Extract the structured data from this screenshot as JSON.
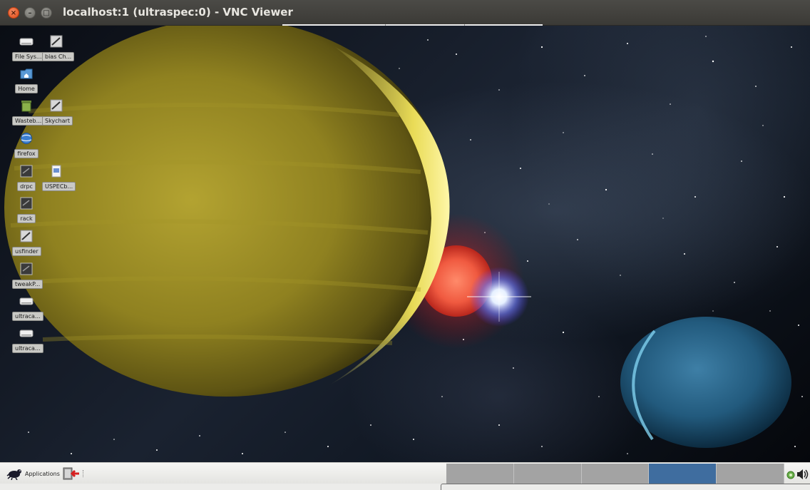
{
  "window": {
    "title": "localhost:1 (ultraspec:0) - VNC Viewer",
    "buttons": {
      "close": "×",
      "minimize": "–",
      "maximize": "□"
    }
  },
  "desktop": {
    "icons": [
      {
        "label": "File Sys...",
        "icon": "drive-icon"
      },
      {
        "label": "bias Ch...",
        "icon": "script-icon"
      },
      {
        "label": "Home",
        "icon": "home-folder-icon"
      },
      {
        "label": "Wasteb...",
        "icon": "trash-icon"
      },
      {
        "label": "Skychart",
        "icon": "script-icon"
      },
      {
        "label": "firefox",
        "icon": "globe-icon"
      },
      {
        "label": "drpc",
        "icon": "terminal-icon"
      },
      {
        "label": "USPECb...",
        "icon": "document-icon"
      },
      {
        "label": "rack",
        "icon": "terminal-icon"
      },
      {
        "label": "usfinder",
        "icon": "script-icon"
      },
      {
        "label": "tweakP...",
        "icon": "terminal-icon"
      },
      {
        "label": "ultraca...",
        "icon": "drive-icon"
      },
      {
        "label": "ultraca...",
        "icon": "drive-icon"
      }
    ]
  },
  "taskbar": {
    "applications_label": "Applications",
    "workspaces": [
      {
        "index": 1,
        "active": false
      },
      {
        "index": 2,
        "active": false
      },
      {
        "index": 3,
        "active": false
      },
      {
        "index": 4,
        "active": true
      },
      {
        "index": 5,
        "active": false
      }
    ],
    "tray": {
      "network_icon": "network-icon",
      "volume_icon": "volume-icon"
    }
  },
  "colors": {
    "titlebar": "#3f3e3a",
    "close_button": "#e95420",
    "taskbar": "#ececea",
    "workspace_inactive": "#a3a3a3",
    "workspace_active": "#3f6d9f"
  }
}
